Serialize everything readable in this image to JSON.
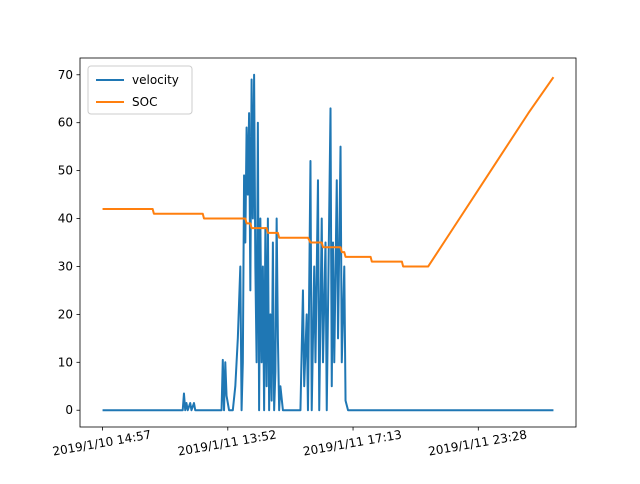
{
  "chart_data": {
    "type": "line",
    "x": [
      0,
      40,
      41,
      64,
      65,
      66,
      67,
      68,
      70,
      71,
      73,
      74,
      80,
      81,
      95,
      96,
      97,
      98,
      99,
      101,
      104,
      106,
      108,
      110,
      111,
      112,
      113,
      114,
      115,
      116,
      117,
      118,
      119,
      120,
      121,
      122,
      123,
      124,
      125,
      126,
      127,
      128,
      129,
      130,
      131,
      132,
      133,
      134,
      135,
      136,
      137,
      138,
      139,
      140,
      141,
      142,
      144,
      156,
      158,
      160,
      161,
      163,
      164,
      166,
      167,
      169,
      170,
      172,
      173,
      175,
      176,
      178,
      179,
      182,
      183,
      184,
      185,
      187,
      188,
      190,
      191,
      193,
      194,
      196,
      200,
      214,
      215,
      239,
      240,
      260,
      280,
      300,
      320,
      340,
      360
    ],
    "series": [
      {
        "name": "velocity",
        "color": "#1f77b4",
        "values": [
          0,
          0,
          0,
          0,
          3.5,
          0,
          1.5,
          0,
          1.5,
          0,
          1.5,
          0,
          0,
          0,
          0,
          10.5,
          0,
          10,
          3,
          0,
          0,
          5,
          15,
          30,
          0,
          10,
          49,
          35,
          59,
          45,
          62,
          25,
          69,
          40,
          70,
          30,
          10,
          60,
          0,
          40,
          10,
          30,
          0,
          38,
          5,
          40,
          0,
          20,
          2,
          35,
          0,
          8,
          40,
          15,
          0,
          5,
          0,
          0,
          0,
          25,
          5,
          20,
          0,
          52,
          0,
          30,
          10,
          48,
          0,
          40,
          10,
          35,
          0,
          63,
          5,
          35,
          10,
          48,
          15,
          55,
          10,
          30,
          2,
          0,
          0,
          0,
          0,
          0,
          0,
          0,
          0,
          0,
          0,
          0,
          0
        ]
      },
      {
        "name": "SOC",
        "color": "#ff7f0e",
        "values": [
          42,
          42,
          41,
          41,
          41,
          41,
          41,
          41,
          41,
          41,
          41,
          41,
          41,
          40,
          40,
          40,
          40,
          40,
          40,
          40,
          40,
          40,
          40,
          40,
          40,
          40,
          40,
          40,
          39,
          39,
          39,
          39,
          38,
          38,
          38,
          38,
          38,
          38,
          38,
          38,
          38,
          38,
          38,
          38,
          38,
          37,
          37,
          37,
          37,
          37,
          37,
          37,
          37,
          37,
          36,
          36,
          36,
          36,
          36,
          36,
          36,
          36,
          36,
          35,
          35,
          35,
          35,
          35,
          35,
          35,
          34,
          34,
          34,
          34,
          34,
          34,
          34,
          34,
          34,
          34,
          33,
          33,
          32,
          32,
          32,
          32,
          31,
          31,
          30,
          30,
          38,
          46,
          54,
          62,
          69.5
        ]
      }
    ],
    "xlim": [
      -18,
      378
    ],
    "xticks": [
      {
        "value": 0,
        "label": "2019/1/10 14:57"
      },
      {
        "value": 100,
        "label": "2019/1/11 13:52"
      },
      {
        "value": 200,
        "label": "2019/1/11 17:13"
      },
      {
        "value": 300,
        "label": "2019/1/11 23:28"
      }
    ],
    "ylim": [
      -3.5,
      73.5
    ],
    "yticks": [
      0,
      10,
      20,
      30,
      40,
      50,
      60,
      70
    ],
    "grid": false,
    "legend": "upper left"
  }
}
